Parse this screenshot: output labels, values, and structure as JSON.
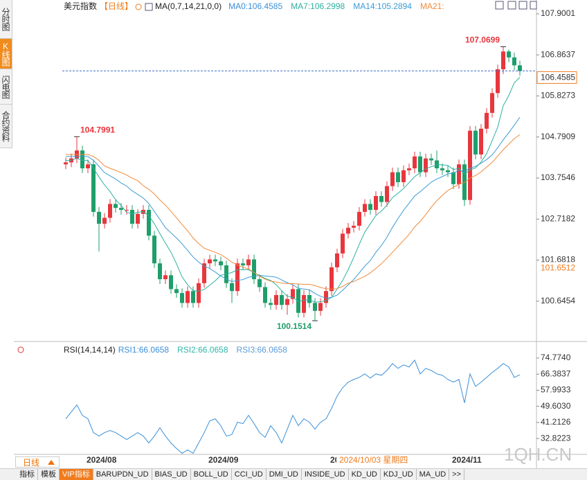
{
  "chart_data": [
    {
      "type": "candlestick",
      "title": "美元指数",
      "period": "【日线】",
      "indicator": "MA(0,7,14,21,0,0)",
      "header_items": [
        {
          "text": "MA0:106.4585",
          "color": "#3a8fd8"
        }
      ],
      "up_color": "#e8363d",
      "down_color": "#1e9e6a",
      "price_line_color": "#3a6fc8",
      "crosshair_color": "#f07c1e",
      "open": [
        104.1,
        104.15,
        104.25,
        104.45,
        104.0,
        104.1,
        102.9,
        102.6,
        102.75,
        103.1,
        103.0,
        102.95,
        102.95,
        102.6,
        102.85,
        102.95,
        102.3,
        101.6,
        101.2,
        101.3,
        100.95,
        100.85,
        100.6,
        100.9,
        100.6,
        101.1,
        101.6,
        101.7,
        101.65,
        101.55,
        101.1,
        100.9,
        101.6,
        101.55,
        101.7,
        101.2,
        101.0,
        100.6,
        100.55,
        100.8,
        100.55,
        100.7,
        100.95,
        100.35,
        100.8,
        100.6,
        100.4,
        100.6,
        100.9,
        101.5,
        101.85,
        102.35,
        102.5,
        102.55,
        102.9,
        103.1,
        102.95,
        103.3,
        103.15,
        103.55,
        103.9,
        103.65,
        103.95,
        104.0,
        104.3,
        103.9,
        104.25,
        104.2,
        104.0,
        103.95,
        103.9,
        103.6,
        104.1,
        103.2,
        104.95,
        104.35,
        105.0,
        105.4,
        105.9,
        106.5,
        106.95,
        106.8,
        106.6
      ],
      "high": [
        104.27,
        104.37,
        104.7991,
        104.57,
        104.22,
        104.22,
        103.02,
        102.87,
        103.22,
        103.22,
        103.12,
        103.07,
        103.07,
        102.97,
        103.07,
        103.07,
        102.42,
        101.72,
        101.42,
        101.42,
        101.07,
        100.97,
        101.02,
        101.02,
        101.22,
        101.72,
        101.82,
        101.82,
        101.77,
        101.67,
        101.22,
        101.72,
        101.72,
        101.82,
        101.82,
        101.32,
        101.12,
        100.72,
        100.92,
        100.92,
        100.82,
        101.07,
        101.07,
        100.92,
        100.92,
        100.72,
        100.72,
        101.02,
        101.62,
        101.97,
        102.47,
        102.62,
        102.67,
        103.02,
        103.22,
        103.22,
        103.42,
        103.42,
        103.67,
        104.02,
        104.02,
        104.07,
        104.12,
        104.42,
        104.42,
        104.37,
        104.37,
        104.45,
        104.12,
        104.07,
        104.02,
        104.22,
        104.22,
        105.07,
        105.07,
        105.12,
        105.52,
        106.02,
        106.62,
        107.0699,
        107.0,
        106.92,
        106.72
      ],
      "low": [
        103.98,
        104.03,
        104.13,
        103.88,
        103.88,
        102.78,
        101.9,
        102.48,
        102.63,
        102.88,
        102.83,
        102.83,
        102.48,
        102.48,
        102.73,
        102.18,
        101.48,
        101.08,
        101.08,
        100.83,
        100.73,
        100.48,
        100.48,
        100.48,
        100.48,
        100.98,
        101.48,
        101.53,
        101.43,
        100.98,
        100.6,
        100.78,
        101.43,
        101.43,
        101.08,
        100.88,
        100.48,
        100.43,
        100.43,
        100.43,
        100.3,
        100.58,
        100.23,
        100.23,
        100.48,
        100.1514,
        100.28,
        100.48,
        100.78,
        101.38,
        101.73,
        102.23,
        102.38,
        102.43,
        102.78,
        102.83,
        102.83,
        103.03,
        103.03,
        103.43,
        103.53,
        103.53,
        103.83,
        103.88,
        103.78,
        103.78,
        104.08,
        103.88,
        103.83,
        103.78,
        103.48,
        103.48,
        103.05,
        103.08,
        104.23,
        104.23,
        104.88,
        105.28,
        105.78,
        106.38,
        106.68,
        106.48,
        106.34
      ],
      "close": [
        104.15,
        104.25,
        104.45,
        104.0,
        104.1,
        102.9,
        102.6,
        102.75,
        103.1,
        103.0,
        102.95,
        102.95,
        102.6,
        102.85,
        102.95,
        102.3,
        101.6,
        101.2,
        101.3,
        100.95,
        100.85,
        100.6,
        100.9,
        100.6,
        101.1,
        101.6,
        101.7,
        101.65,
        101.55,
        101.1,
        100.9,
        101.6,
        101.55,
        101.7,
        101.2,
        101.0,
        100.6,
        100.55,
        100.8,
        100.55,
        100.7,
        100.95,
        100.35,
        100.8,
        100.6,
        100.4,
        100.6,
        100.9,
        101.5,
        101.85,
        102.35,
        102.5,
        102.55,
        102.9,
        103.1,
        102.95,
        103.3,
        103.15,
        103.55,
        103.9,
        103.65,
        103.95,
        104.0,
        104.3,
        103.9,
        104.25,
        104.2,
        104.0,
        103.95,
        103.9,
        103.6,
        104.1,
        103.2,
        104.95,
        104.35,
        105.0,
        105.4,
        105.9,
        106.5,
        106.95,
        106.8,
        106.6,
        106.4585
      ],
      "series": [
        {
          "name": "MA7:106.2998",
          "color": "#2bb0a0",
          "values": [
            104.2,
            104.2,
            104.25,
            104.2,
            104.2,
            104.0,
            103.78,
            103.58,
            103.41,
            103.21,
            103.06,
            102.89,
            102.85,
            102.89,
            102.91,
            102.8,
            102.6,
            102.35,
            102.11,
            101.88,
            101.59,
            101.26,
            101.06,
            100.91,
            100.9,
            100.94,
            101.05,
            101.16,
            101.3,
            101.33,
            101.37,
            101.44,
            101.44,
            101.44,
            101.37,
            101.29,
            101.22,
            101.17,
            101.06,
            100.91,
            100.77,
            100.74,
            100.64,
            100.67,
            100.68,
            100.62,
            100.63,
            100.66,
            100.74,
            100.95,
            101.17,
            101.44,
            101.75,
            102.08,
            102.39,
            102.6,
            102.81,
            102.92,
            103.07,
            103.26,
            103.37,
            103.49,
            103.64,
            103.79,
            103.89,
            103.99,
            104.04,
            104.09,
            104.09,
            104.07,
            103.97,
            104.0,
            103.85,
            103.96,
            104.01,
            104.16,
            104.37,
            104.7,
            105.04,
            105.58,
            105.84,
            106.16,
            106.2998
          ]
        },
        {
          "name": "MA14:105.2894",
          "color": "#3a9bd5",
          "values": [
            104.3,
            104.3,
            104.3,
            104.3,
            104.3,
            104.2,
            104.05,
            103.89,
            103.81,
            103.73,
            103.63,
            103.55,
            103.43,
            103.34,
            103.25,
            103.11,
            102.91,
            102.71,
            102.5,
            102.37,
            102.24,
            102.09,
            101.93,
            101.76,
            101.63,
            101.53,
            101.47,
            101.38,
            101.28,
            101.2,
            101.14,
            101.17,
            101.19,
            101.25,
            101.27,
            101.3,
            101.28,
            101.27,
            101.25,
            101.18,
            101.11,
            101.06,
            100.97,
            100.95,
            100.93,
            100.84,
            100.77,
            100.72,
            100.74,
            100.8,
            100.92,
            101.06,
            101.19,
            101.36,
            101.53,
            101.67,
            101.88,
            102.05,
            102.26,
            102.51,
            102.73,
            102.94,
            103.12,
            103.3,
            103.41,
            103.53,
            103.65,
            103.73,
            103.79,
            103.86,
            103.88,
            103.95,
            103.92,
            104.0,
            104.05,
            104.13,
            104.22,
            104.34,
            104.52,
            104.72,
            104.9,
            105.09,
            105.2894
          ]
        },
        {
          "name": "MA21:",
          "color": "#f08a3a",
          "values": [
            104.35,
            104.35,
            104.35,
            104.35,
            104.35,
            104.3,
            104.2,
            104.06,
            104.0,
            103.95,
            103.89,
            103.83,
            103.75,
            103.69,
            103.56,
            103.47,
            103.35,
            103.2,
            103.07,
            102.91,
            102.75,
            102.58,
            102.42,
            102.24,
            102.1,
            101.98,
            101.93,
            101.88,
            101.82,
            101.73,
            101.63,
            101.56,
            101.5,
            101.46,
            101.37,
            101.28,
            101.2,
            101.15,
            101.13,
            101.1,
            101.09,
            101.09,
            101.08,
            101.07,
            101.07,
            101.04,
            100.99,
            100.96,
            100.95,
            100.96,
            101.02,
            101.1,
            101.14,
            101.21,
            101.27,
            101.36,
            101.47,
            101.59,
            101.73,
            101.88,
            102.03,
            102.18,
            102.33,
            102.52,
            102.66,
            102.83,
            103.02,
            103.18,
            103.32,
            103.44,
            103.52,
            103.6,
            103.64,
            103.75,
            103.82,
            103.91,
            104.03,
            104.15,
            104.31,
            104.47,
            104.61,
            104.75,
            104.85
          ]
        }
      ],
      "extreme_labels": [
        104.7991,
        107.0699,
        100.1514
      ],
      "crosshair_price": 101.6512,
      "ylim": [
        99.68,
        108.04
      ],
      "yticks": [
        107.9001,
        106.8637,
        105.8273,
        104.7909,
        103.7546,
        102.7182,
        101.6818,
        100.6454
      ]
    },
    {
      "type": "line",
      "title": "RSI(14,14,14)",
      "header_items": [
        {
          "text": "RSI2:66.0658",
          "color": "#2fb5a8"
        },
        {
          "text": "RSI3:66.0658",
          "color": "#5b9bd8"
        }
      ],
      "categories": [
        null,
        null,
        null,
        null,
        "2024/08",
        null,
        null,
        null,
        null,
        null,
        null,
        null,
        null,
        null,
        null,
        null,
        null,
        null,
        null,
        null,
        null,
        null,
        null,
        null,
        null,
        null,
        "2024/09",
        null,
        null,
        null,
        null,
        null,
        null,
        null,
        null,
        null,
        null,
        null,
        null,
        null,
        null,
        null,
        null,
        null,
        null,
        null,
        null,
        null,
        "20",
        null,
        null,
        null,
        null,
        null,
        null,
        null,
        null,
        null,
        null,
        null,
        null,
        null,
        null,
        null,
        null,
        null,
        null,
        null,
        null,
        null,
        "2024/11",
        null,
        null,
        null,
        null,
        null,
        null,
        null,
        null,
        null,
        null,
        null,
        null
      ],
      "crosshair_date": "2024/10/03 星期四",
      "series": [
        {
          "name": "RSI1:66.0658",
          "color": "#3a8fd8",
          "values": [
            43.1,
            46.7,
            50.3,
            44.9,
            43.1,
            35.9,
            34.1,
            35.9,
            37.0,
            35.9,
            34.1,
            32.3,
            34.1,
            35.9,
            34.1,
            30.5,
            34.1,
            38.4,
            34.1,
            30.5,
            27.6,
            25.1,
            26.9,
            25.1,
            30.5,
            35.9,
            42.0,
            43.1,
            39.5,
            34.1,
            34.9,
            41.3,
            40.6,
            44.9,
            40.6,
            35.9,
            33.4,
            39.5,
            35.9,
            30.5,
            37.7,
            44.9,
            39.5,
            43.1,
            41.3,
            37.7,
            41.3,
            43.1,
            48.5,
            55.0,
            59.3,
            62.2,
            63.6,
            64.7,
            66.5,
            64.3,
            66.5,
            65.8,
            68.3,
            71.9,
            69.4,
            71.2,
            70.1,
            73.7,
            66.5,
            69.4,
            68.3,
            66.5,
            65.8,
            63.6,
            62.2,
            63.6,
            51.4,
            66.5,
            60.0,
            62.2,
            64.7,
            67.2,
            69.4,
            71.9,
            70.1,
            64.7,
            66.0658
          ]
        }
      ],
      "ylim": [
        24.91,
        81.61
      ],
      "yticks": [
        {
          "value": 74.774,
          "label": "74.7740"
        },
        66.3837,
        57.9933,
        {
          "value": 49.603,
          "label": "49.6030"
        },
        41.2126,
        32.8223
      ]
    }
  ],
  "ui": {
    "sidebar_tabs": [
      "分时图",
      "K线图",
      "闪电图",
      "合约资料"
    ],
    "period_button": "日线",
    "tabs": [
      "指标",
      "模板",
      "VIP指标",
      "BARUPDN_UD",
      "BIAS_UD",
      "BOLL_UD",
      "CCI_UD",
      "DMI_UD",
      "INSIDE_UD",
      "KD_UD",
      "KDJ_UD",
      "MA_UD",
      ">>"
    ],
    "watermark": "1QH.CN"
  }
}
